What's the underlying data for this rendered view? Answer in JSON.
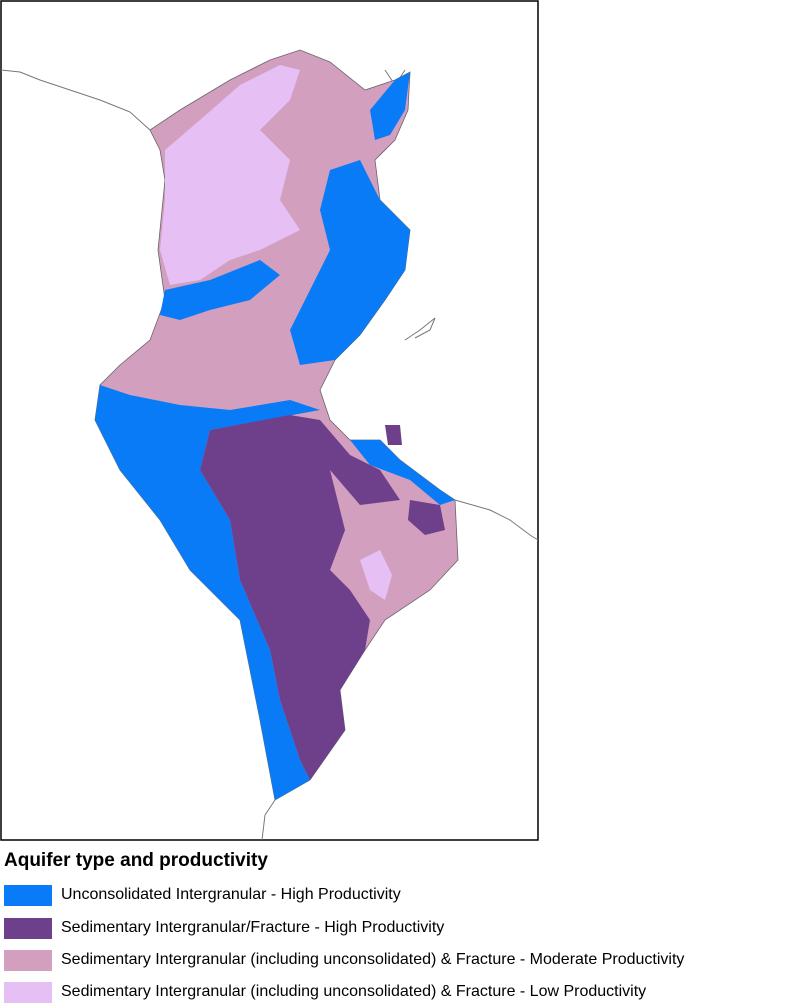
{
  "legend": {
    "title": "Aquifer type and productivity",
    "items": [
      {
        "label": "Unconsolidated Intergranular - High Productivity",
        "color": "#0a7bf7"
      },
      {
        "label": "Sedimentary Intergranular/Fracture - High Productivity",
        "color": "#6e3f8a"
      },
      {
        "label": "Sedimentary Intergranular (including unconsolidated) & Fracture - Moderate Productivity",
        "color": "#d39fbe"
      },
      {
        "label": "Sedimentary Intergranular (including unconsolidated) & Fracture - Low Productivity",
        "color": "#e6bff5"
      }
    ]
  }
}
